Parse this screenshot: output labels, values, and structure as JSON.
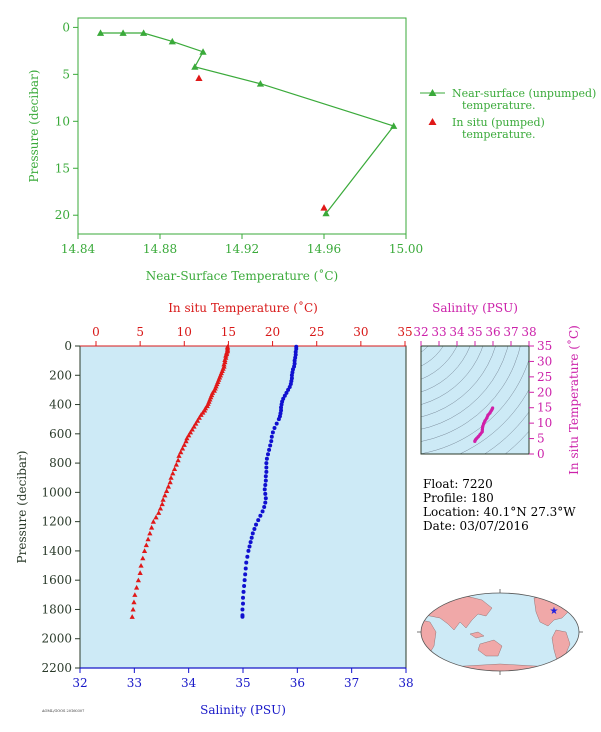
{
  "colors": {
    "green": "#3aaa3a",
    "red": "#e01818",
    "blue": "#1010d0",
    "magenta": "#d020a8",
    "dark": "#2a3a2a",
    "panel_bg": "#cdeaf6",
    "land": "#f0a8a8"
  },
  "info": {
    "float": "Float:  7220",
    "profile": "Profile:  180",
    "location": "Location:  40.1°N  27.3°W",
    "date": "Date:  03/07/2016"
  },
  "footer_code": "AOML/GOOS 20160307",
  "chart_data": [
    {
      "type": "line",
      "title": "",
      "xlabel": "Near-Surface Temperature (˚C)",
      "ylabel": "Pressure (decibar)",
      "xlim": [
        14.84,
        15.0
      ],
      "ylim": [
        22,
        -1
      ],
      "x_ticks": [
        "14.84",
        "14.88",
        "14.92",
        "14.96",
        "15.00"
      ],
      "y_ticks": [
        "0",
        "5",
        "10",
        "15",
        "20"
      ],
      "legend_position": "right",
      "series": [
        {
          "name": "Near-surface (unpumped) temperature.",
          "marker": "triangle-line",
          "points": [
            [
              14.851,
              0.6
            ],
            [
              14.862,
              0.6
            ],
            [
              14.872,
              0.6
            ],
            [
              14.886,
              1.5
            ],
            [
              14.901,
              2.6
            ],
            [
              14.897,
              4.2
            ],
            [
              14.929,
              6.0
            ],
            [
              14.994,
              10.5
            ],
            [
              14.961,
              19.8
            ]
          ]
        },
        {
          "name": "In situ (pumped) temperature.",
          "marker": "triangle",
          "points": [
            [
              14.899,
              5.4
            ],
            [
              14.96,
              19.2
            ]
          ]
        }
      ]
    },
    {
      "type": "scatter",
      "title": "",
      "xlabel_top": "In situ Temperature (˚C)",
      "xlabel_bottom": "Salinity (PSU)",
      "ylabel": "Pressure (decibar)",
      "temp_lim": [
        -2,
        35
      ],
      "sal_lim": [
        32,
        38
      ],
      "ylim": [
        2200,
        0
      ],
      "temp_ticks": [
        "0",
        "5",
        "10",
        "15",
        "20",
        "25",
        "30",
        "35"
      ],
      "sal_ticks": [
        "32",
        "33",
        "34",
        "35",
        "36",
        "37",
        "38"
      ],
      "y_ticks": [
        "0",
        "200",
        "400",
        "600",
        "800",
        "1000",
        "1200",
        "1400",
        "1600",
        "1800",
        "2000",
        "2200"
      ],
      "series": [
        {
          "name": "In situ Temperature",
          "marker": "triangle",
          "pressure": [
            5,
            15,
            25,
            35,
            45,
            55,
            65,
            80,
            95,
            110,
            125,
            140,
            155,
            170,
            185,
            200,
            215,
            230,
            245,
            260,
            275,
            290,
            305,
            320,
            335,
            350,
            365,
            380,
            395,
            410,
            425,
            440,
            455,
            470,
            490,
            510,
            530,
            550,
            570,
            590,
            610,
            630,
            650,
            675,
            700,
            725,
            750,
            780,
            810,
            840,
            870,
            900,
            930,
            960,
            990,
            1020,
            1050,
            1080,
            1110,
            1140,
            1170,
            1200,
            1240,
            1280,
            1320,
            1360,
            1400,
            1450,
            1500,
            1550,
            1600,
            1650,
            1700,
            1750,
            1800,
            1850
          ],
          "temperature": [
            14.9,
            14.9,
            14.9,
            14.9,
            14.8,
            14.8,
            14.7,
            14.7,
            14.6,
            14.6,
            14.5,
            14.5,
            14.4,
            14.3,
            14.2,
            14.1,
            14.0,
            13.9,
            13.8,
            13.7,
            13.6,
            13.5,
            13.4,
            13.2,
            13.1,
            13.0,
            12.9,
            12.8,
            12.7,
            12.6,
            12.4,
            12.3,
            12.1,
            11.9,
            11.7,
            11.5,
            11.3,
            11.1,
            10.9,
            10.7,
            10.5,
            10.3,
            10.2,
            10.0,
            9.8,
            9.6,
            9.4,
            9.3,
            9.1,
            8.9,
            8.7,
            8.5,
            8.4,
            8.2,
            8.0,
            7.8,
            7.6,
            7.5,
            7.3,
            7.1,
            6.8,
            6.5,
            6.3,
            6.1,
            5.9,
            5.7,
            5.5,
            5.3,
            5.1,
            5.0,
            4.8,
            4.6,
            4.4,
            4.3,
            4.2,
            4.1
          ]
        },
        {
          "name": "Salinity",
          "marker": "circle",
          "pressure": [
            5,
            20,
            40,
            60,
            80,
            100,
            120,
            140,
            160,
            180,
            200,
            220,
            240,
            260,
            280,
            300,
            320,
            340,
            360,
            380,
            400,
            420,
            440,
            460,
            480,
            500,
            530,
            560,
            590,
            620,
            650,
            680,
            710,
            740,
            770,
            800,
            830,
            860,
            890,
            920,
            950,
            980,
            1010,
            1040,
            1070,
            1100,
            1130,
            1160,
            1190,
            1220,
            1250,
            1280,
            1310,
            1340,
            1370,
            1400,
            1440,
            1480,
            1520,
            1560,
            1600,
            1640,
            1680,
            1720,
            1760,
            1800,
            1840,
            1850
          ],
          "salinity": [
            35.98,
            35.98,
            35.97,
            35.97,
            35.96,
            35.95,
            35.95,
            35.94,
            35.92,
            35.91,
            35.9,
            35.9,
            35.89,
            35.88,
            35.86,
            35.83,
            35.8,
            35.77,
            35.74,
            35.72,
            35.71,
            35.7,
            35.7,
            35.69,
            35.68,
            35.66,
            35.62,
            35.58,
            35.55,
            35.53,
            35.52,
            35.5,
            35.48,
            35.46,
            35.44,
            35.43,
            35.43,
            35.43,
            35.42,
            35.42,
            35.41,
            35.4,
            35.41,
            35.42,
            35.41,
            35.39,
            35.36,
            35.32,
            35.28,
            35.24,
            35.21,
            35.18,
            35.16,
            35.14,
            35.12,
            35.1,
            35.08,
            35.06,
            35.05,
            35.04,
            35.03,
            35.02,
            35.01,
            35.0,
            35.0,
            34.99,
            34.99,
            34.99
          ]
        }
      ]
    },
    {
      "type": "scatter",
      "title": "",
      "xlabel_top": "Salinity (PSU)",
      "ylabel": "In situ Temperature (˚C)",
      "xlim": [
        32,
        38
      ],
      "ylim": [
        0,
        35
      ],
      "x_ticks": [
        "32",
        "33",
        "34",
        "35",
        "36",
        "37",
        "38"
      ],
      "y_ticks": [
        "0",
        "5",
        "10",
        "15",
        "20",
        "25",
        "30",
        "35"
      ],
      "series": [
        {
          "name": "T-S",
          "points": [
            [
              35.98,
              14.9
            ],
            [
              35.95,
              14.5
            ],
            [
              35.9,
              14.0
            ],
            [
              35.83,
              13.3
            ],
            [
              35.72,
              12.6
            ],
            [
              35.66,
              11.7
            ],
            [
              35.55,
              10.7
            ],
            [
              35.48,
              9.8
            ],
            [
              35.43,
              8.9
            ],
            [
              35.41,
              8.0
            ],
            [
              35.4,
              7.2
            ],
            [
              35.28,
              6.3
            ],
            [
              35.18,
              5.6
            ],
            [
              35.1,
              5.1
            ],
            [
              35.04,
              4.7
            ],
            [
              35.0,
              4.3
            ],
            [
              34.99,
              4.1
            ]
          ]
        }
      ]
    },
    {
      "type": "map",
      "title": "",
      "marker_label": "float-location-star",
      "marker_lat": 40.1,
      "marker_lon": -27.3
    }
  ]
}
